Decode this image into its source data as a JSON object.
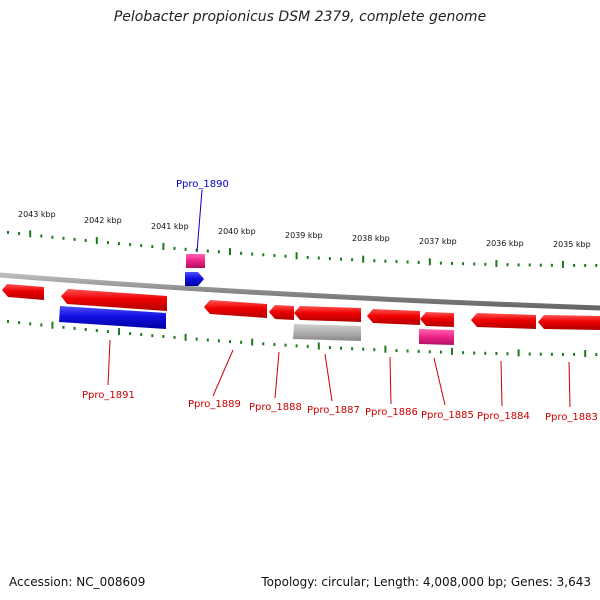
{
  "title": "Pelobacter propionicus DSM 2379, complete genome",
  "colors": {
    "gene_forward": "#1010e0",
    "gene_reverse": "#ee0000",
    "gene_pink": "#ee2288",
    "gene_gray": "#b0b0b0",
    "tick": "#1e7a1e",
    "backbone": "#888888",
    "label_red": "#cc0000",
    "label_blue": "#0000cc"
  },
  "scale_labels": [
    "2043 kbp",
    "2042 kbp",
    "2041 kbp",
    "2040 kbp",
    "2039 kbp",
    "2038 kbp",
    "2037 kbp",
    "2036 kbp",
    "2035 kbp"
  ],
  "gene_labels": [
    {
      "name": "Ppro_1890",
      "color": "blue"
    },
    {
      "name": "Ppro_1891",
      "color": "red"
    },
    {
      "name": "Ppro_1889",
      "color": "red"
    },
    {
      "name": "Ppro_1888",
      "color": "red"
    },
    {
      "name": "Ppro_1887",
      "color": "red"
    },
    {
      "name": "Ppro_1886",
      "color": "red"
    },
    {
      "name": "Ppro_1885",
      "color": "red"
    },
    {
      "name": "Ppro_1884",
      "color": "red"
    },
    {
      "name": "Ppro_1883",
      "color": "red"
    }
  ],
  "footer": {
    "accession": "Accession: NC_008609",
    "summary": "Topology: circular; Length: 4,008,000 bp; Genes: 3,643"
  }
}
